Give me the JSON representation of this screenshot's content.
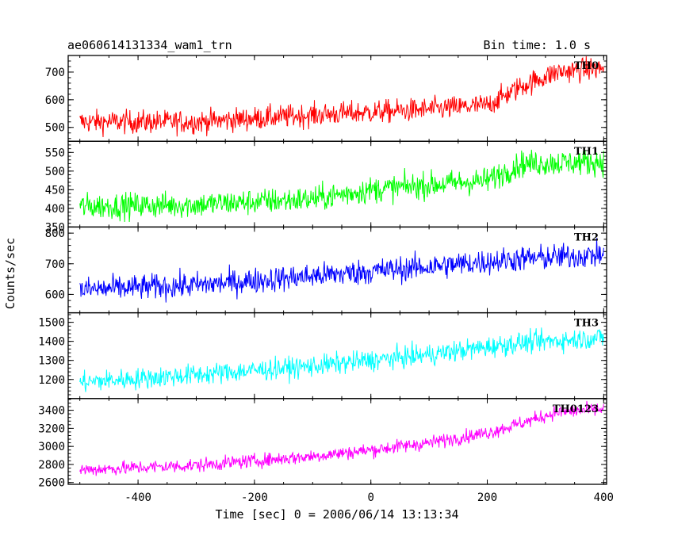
{
  "chart_data": {
    "type": "line",
    "title": "ae060614131334_wam1_trn",
    "bin_time": "Bin time: 1.0 s",
    "xlabel": "Time [sec] 0 = 2006/06/14 13:13:34",
    "ylabel": "Counts/sec",
    "xlim": [
      -520,
      405
    ],
    "xticks": [
      -400,
      -200,
      0,
      200,
      400
    ],
    "grid": false,
    "panels": [
      {
        "name": "TH0",
        "color": "#ff0000",
        "ylim": [
          450,
          760
        ],
        "yticks": [
          500,
          600,
          700
        ],
        "trend": [
          [
            -500,
            520
          ],
          [
            -300,
            520
          ],
          [
            -100,
            545
          ],
          [
            100,
            565
          ],
          [
            200,
            580
          ],
          [
            260,
            650
          ],
          [
            320,
            700
          ],
          [
            400,
            715
          ]
        ],
        "noise": 30,
        "t_start": -500,
        "t_end": 400
      },
      {
        "name": "TH1",
        "color": "#00ff00",
        "ylim": [
          350,
          580
        ],
        "yticks": [
          350,
          400,
          450,
          500,
          550
        ],
        "trend": [
          [
            -500,
            405
          ],
          [
            -300,
            410
          ],
          [
            -100,
            425
          ],
          [
            0,
            450
          ],
          [
            200,
            475
          ],
          [
            260,
            520
          ],
          [
            400,
            525
          ]
        ],
        "noise": 25,
        "t_start": -500,
        "t_end": 400
      },
      {
        "name": "TH2",
        "color": "#0000ff",
        "ylim": [
          540,
          820
        ],
        "yticks": [
          600,
          700,
          800
        ],
        "trend": [
          [
            -500,
            615
          ],
          [
            -300,
            630
          ],
          [
            -100,
            660
          ],
          [
            100,
            690
          ],
          [
            250,
            715
          ],
          [
            400,
            730
          ]
        ],
        "noise": 30,
        "t_start": -500,
        "t_end": 400
      },
      {
        "name": "TH3",
        "color": "#00ffff",
        "ylim": [
          1100,
          1550
        ],
        "yticks": [
          1200,
          1300,
          1400,
          1500
        ],
        "trend": [
          [
            -500,
            1185
          ],
          [
            -300,
            1225
          ],
          [
            -100,
            1270
          ],
          [
            100,
            1330
          ],
          [
            250,
            1390
          ],
          [
            400,
            1420
          ]
        ],
        "noise": 40,
        "t_start": -500,
        "t_end": 400
      },
      {
        "name": "TH0123",
        "color": "#ff00ff",
        "ylim": [
          2580,
          3530
        ],
        "yticks": [
          2600,
          2800,
          3000,
          3200,
          3400
        ],
        "trend": [
          [
            -500,
            2740
          ],
          [
            -300,
            2790
          ],
          [
            -100,
            2890
          ],
          [
            0,
            2960
          ],
          [
            100,
            3040
          ],
          [
            200,
            3150
          ],
          [
            260,
            3260
          ],
          [
            320,
            3380
          ],
          [
            400,
            3410
          ]
        ],
        "noise": 55,
        "t_start": -500,
        "t_end": 400
      }
    ]
  }
}
